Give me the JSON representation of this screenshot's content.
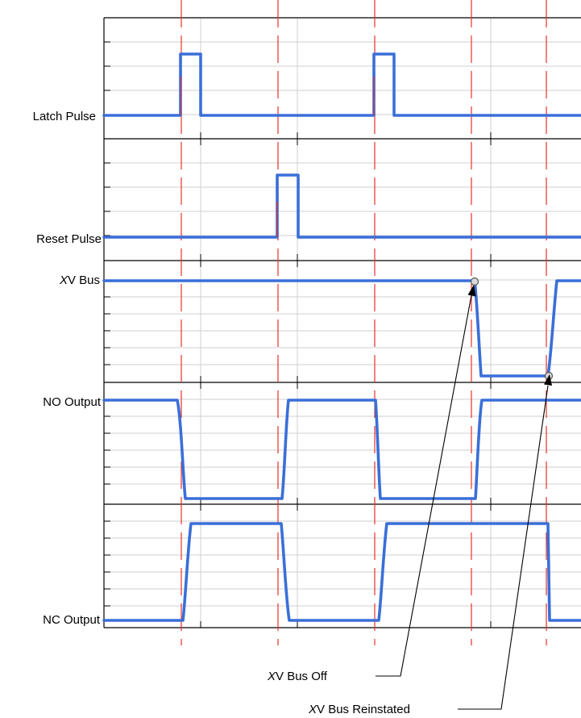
{
  "traces": [
    {
      "key": "latch",
      "prefix": "",
      "label": "Latch Pulse"
    },
    {
      "key": "reset",
      "prefix": "",
      "label": "Reset Pulse"
    },
    {
      "key": "xv",
      "prefix": "X",
      "label": "V Bus"
    },
    {
      "key": "no",
      "prefix": "",
      "label": "NO Output"
    },
    {
      "key": "nc",
      "prefix": "",
      "label": "NC Output"
    }
  ],
  "annotations": {
    "bus_off": {
      "prefix": "X",
      "label": "V Bus Off"
    },
    "bus_reinstated": {
      "prefix": "X",
      "label": "V Bus Reinstated"
    }
  },
  "colors": {
    "signal": "#3a6fd8",
    "marker": "#e8302a",
    "grid": "#cfcfcf",
    "frame": "#000000"
  }
}
